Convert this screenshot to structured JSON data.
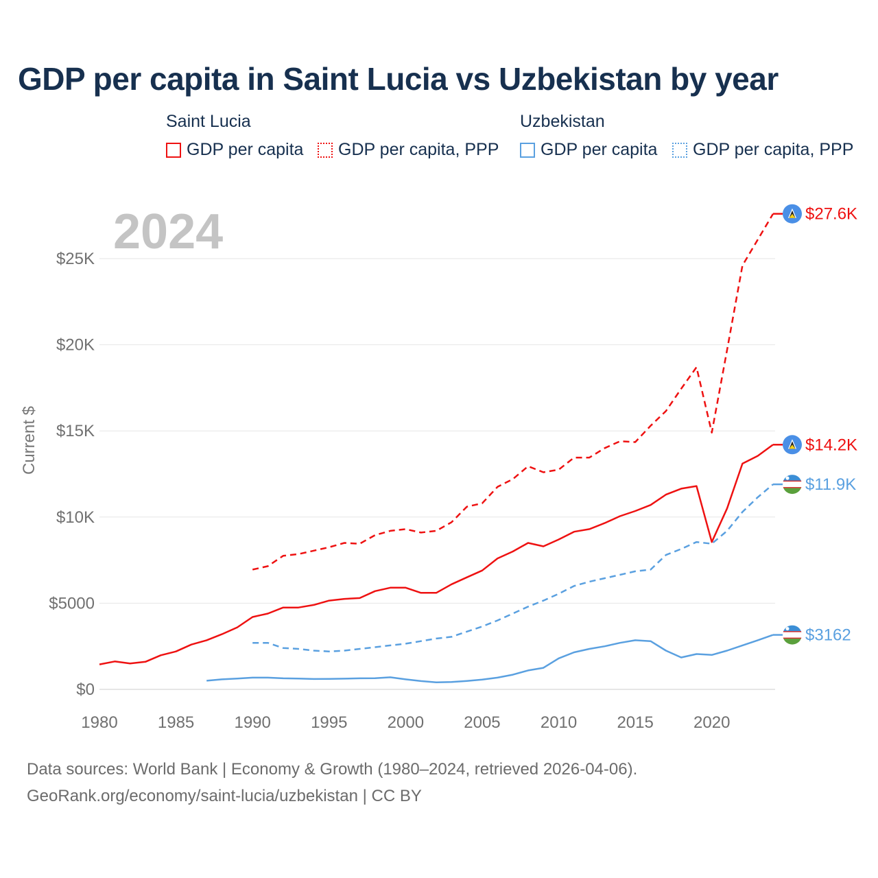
{
  "title": "GDP per capita in Saint Lucia vs Uzbekistan by year",
  "legend": {
    "groups": [
      {
        "country": "Saint Lucia",
        "color": "#ee1111",
        "items": [
          {
            "label": "GDP per capita",
            "style": "solid"
          },
          {
            "label": "GDP per capita, PPP",
            "style": "dotted"
          }
        ]
      },
      {
        "country": "Uzbekistan",
        "color": "#5aa0e0",
        "items": [
          {
            "label": "GDP per capita",
            "style": "solid"
          },
          {
            "label": "GDP per capita, PPP",
            "style": "dotted"
          }
        ]
      }
    ]
  },
  "footer": {
    "line1": "Data sources: World Bank | Economy & Growth (1980–2024, retrieved 2026-04-06).",
    "line2": "GeoRank.org/economy/saint-lucia/uzbekistan | CC BY"
  },
  "chart_data": {
    "type": "line",
    "year_watermark": "2024",
    "ylabel": "Current $",
    "xlim": [
      1980,
      2024
    ],
    "ylim": [
      0,
      28000
    ],
    "x_ticks": [
      1980,
      1985,
      1990,
      1995,
      2000,
      2005,
      2010,
      2015,
      2020
    ],
    "x_tick_labels": [
      "1980",
      "1985",
      "1990",
      "1995",
      "2000",
      "2005",
      "2010",
      "2015",
      "2020"
    ],
    "y_ticks": [
      0,
      5000,
      10000,
      15000,
      20000,
      25000
    ],
    "y_tick_labels": [
      "$0",
      "$5000",
      "$10K",
      "$15K",
      "$20K",
      "$25K"
    ],
    "series": [
      {
        "name": "Saint Lucia GDP per capita, PPP",
        "country": "Saint Lucia",
        "color": "#ee1111",
        "dash": "dashed",
        "end_label": "$27.6K",
        "flag": "lc",
        "x": [
          1990,
          1991,
          1992,
          1993,
          1994,
          1995,
          1996,
          1997,
          1998,
          1999,
          2000,
          2001,
          2002,
          2003,
          2004,
          2005,
          2006,
          2007,
          2008,
          2009,
          2010,
          2011,
          2012,
          2013,
          2014,
          2015,
          2016,
          2017,
          2018,
          2019,
          2020,
          2021,
          2022,
          2023,
          2024
        ],
        "values": [
          6950,
          7150,
          7750,
          7850,
          8050,
          8250,
          8500,
          8450,
          8950,
          9200,
          9300,
          9100,
          9200,
          9700,
          10600,
          10800,
          11750,
          12200,
          12950,
          12600,
          12750,
          13450,
          13450,
          14000,
          14400,
          14350,
          15300,
          16150,
          17450,
          18700,
          14900,
          19700,
          24600,
          26100,
          27600
        ]
      },
      {
        "name": "Saint Lucia GDP per capita",
        "country": "Saint Lucia",
        "color": "#ee1111",
        "dash": "solid",
        "end_label": "$14.2K",
        "flag": "lc",
        "x": [
          1980,
          1981,
          1982,
          1983,
          1984,
          1985,
          1986,
          1987,
          1988,
          1989,
          1990,
          1991,
          1992,
          1993,
          1994,
          1995,
          1996,
          1997,
          1998,
          1999,
          2000,
          2001,
          2002,
          2003,
          2004,
          2005,
          2006,
          2007,
          2008,
          2009,
          2010,
          2011,
          2012,
          2013,
          2014,
          2015,
          2016,
          2017,
          2018,
          2019,
          2020,
          2021,
          2022,
          2023,
          2024
        ],
        "values": [
          1450,
          1620,
          1500,
          1600,
          1980,
          2200,
          2600,
          2850,
          3200,
          3600,
          4200,
          4400,
          4750,
          4750,
          4900,
          5150,
          5250,
          5300,
          5700,
          5900,
          5900,
          5600,
          5600,
          6100,
          6500,
          6900,
          7600,
          8000,
          8500,
          8300,
          8700,
          9150,
          9300,
          9650,
          10050,
          10350,
          10700,
          11300,
          11650,
          11800,
          8550,
          10500,
          13100,
          13550,
          14200
        ]
      },
      {
        "name": "Uzbekistan GDP per capita, PPP",
        "country": "Uzbekistan",
        "color": "#5aa0e0",
        "dash": "dashed",
        "end_label": "$11.9K",
        "flag": "uz",
        "x": [
          1990,
          1991,
          1992,
          1993,
          1994,
          1995,
          1996,
          1997,
          1998,
          1999,
          2000,
          2001,
          2002,
          2003,
          2004,
          2005,
          2006,
          2007,
          2008,
          2009,
          2010,
          2011,
          2012,
          2013,
          2014,
          2015,
          2016,
          2017,
          2018,
          2019,
          2020,
          2021,
          2022,
          2023,
          2024
        ],
        "values": [
          2700,
          2700,
          2400,
          2350,
          2250,
          2200,
          2250,
          2350,
          2450,
          2550,
          2650,
          2800,
          2950,
          3050,
          3350,
          3650,
          4000,
          4400,
          4800,
          5150,
          5550,
          6000,
          6250,
          6450,
          6650,
          6850,
          6950,
          7800,
          8150,
          8550,
          8450,
          9200,
          10300,
          11150,
          11900
        ]
      },
      {
        "name": "Uzbekistan GDP per capita",
        "country": "Uzbekistan",
        "color": "#5aa0e0",
        "dash": "solid",
        "end_label": "$3162",
        "flag": "uz",
        "x": [
          1987,
          1988,
          1989,
          1990,
          1991,
          1992,
          1993,
          1994,
          1995,
          1996,
          1997,
          1998,
          1999,
          2000,
          2001,
          2002,
          2003,
          2004,
          2005,
          2006,
          2007,
          2008,
          2009,
          2010,
          2011,
          2012,
          2013,
          2014,
          2015,
          2016,
          2017,
          2018,
          2019,
          2020,
          2021,
          2022,
          2023,
          2024
        ],
        "values": [
          500,
          580,
          630,
          680,
          680,
          640,
          630,
          600,
          610,
          620,
          640,
          650,
          700,
          580,
          480,
          410,
          430,
          490,
          570,
          680,
          850,
          1100,
          1250,
          1800,
          2150,
          2350,
          2500,
          2700,
          2850,
          2800,
          2250,
          1850,
          2050,
          2000,
          2250,
          2550,
          2850,
          3162
        ]
      }
    ]
  }
}
